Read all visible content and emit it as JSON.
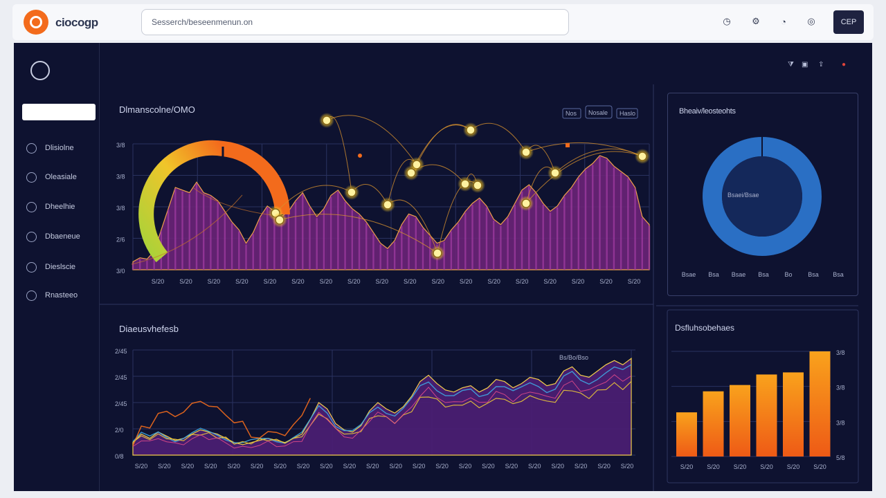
{
  "header": {
    "brand": "ciocogp",
    "search_value": "Sesserch/beseenmenun.on",
    "icons": [
      "clock-icon",
      "gear-icon",
      "bell-icon",
      "globe-icon"
    ],
    "button_label": "CEP"
  },
  "sidebar": {
    "search_value": "",
    "items": [
      {
        "label": "Dlisiolne",
        "icon": "circle-icon"
      },
      {
        "label": "Oleasiale",
        "icon": "circle-icon"
      },
      {
        "label": "Dheelhie",
        "icon": "circle-icon"
      },
      {
        "label": "Dbaeneue",
        "icon": "circle-icon"
      },
      {
        "label": "Dieslscie",
        "icon": "circle-icon"
      },
      {
        "label": "Rnasteeo",
        "icon": "circle-icon"
      }
    ]
  },
  "main": {
    "corner_icons": [
      "filter-icon",
      "lock-icon",
      "share-icon",
      "alert-icon"
    ],
    "top_chart": {
      "title": "Dlmanscolne/OMO",
      "legend": [
        "Nos",
        "Nosale",
        "Haslo"
      ],
      "y_ticks": [
        "3/8",
        "3/8",
        "3/8",
        "2/6",
        "3/0"
      ],
      "x_ticks": [
        "S/20",
        "S/20",
        "S/20",
        "S/20",
        "S/20",
        "S/20",
        "S/20",
        "S/20",
        "S/20",
        "S/20",
        "S/20",
        "S/20",
        "S/20",
        "S/20",
        "S/20",
        "S/20",
        "S/20",
        "S/20"
      ]
    },
    "bottom_chart": {
      "title": "Diaeusvhefesb",
      "annotation": "Bs/Bo/Bso",
      "y_ticks": [
        "2/45",
        "2/45",
        "2/45",
        "2/0",
        "0/8"
      ],
      "x_ticks": [
        "S/20",
        "S/20",
        "S/20",
        "S/20",
        "S/20",
        "S/20",
        "S/20",
        "S/20",
        "S/20",
        "S/20",
        "S/20",
        "S/20",
        "S/20",
        "S/20",
        "S/20",
        "S/20",
        "S/20",
        "S/20",
        "S/20",
        "S/20",
        "S/20",
        "S/20"
      ]
    }
  },
  "right_panels": {
    "donut": {
      "title": "Bheaiv/leosteohts",
      "inner_label": "Bsaei/Bsae",
      "labels": [
        "Bsae",
        "Bsa",
        "Bsae",
        "Bsa",
        "Bo",
        "Bsa",
        "Bsa"
      ],
      "segments": [
        {
          "value": 100,
          "color": "#2a6fc4"
        }
      ]
    },
    "bars": {
      "title": "Dsfluhsobehaes",
      "y_ticks": [
        "3/8",
        "3/8",
        "3/8",
        "5/8"
      ],
      "x_ticks": [
        "S/20",
        "S/20",
        "S/20",
        "S/20",
        "S/20",
        "S/20"
      ]
    }
  },
  "colors": {
    "background": "#0e1230",
    "accent_orange": "#f36b1c",
    "area_purple": "#6a2478",
    "donut_blue": "#2a6fc4"
  },
  "chart_data": [
    {
      "type": "area",
      "title": "Dlmanscolne/OMO",
      "series": [
        {
          "values": [
            6,
            9,
            8,
            14,
            30,
            46,
            62,
            60,
            58,
            66,
            58,
            56,
            52,
            44,
            36,
            30,
            20,
            28,
            40,
            48,
            44,
            40,
            44,
            52,
            58,
            48,
            40,
            46,
            56,
            60,
            52,
            46,
            42,
            36,
            28,
            20,
            16,
            22,
            34,
            42,
            40,
            32,
            26,
            20,
            22,
            30,
            36,
            44,
            50,
            54,
            48,
            38,
            34,
            40,
            50,
            60,
            64,
            58,
            50,
            44,
            48,
            56,
            62,
            70,
            76,
            80,
            86,
            84,
            78,
            74,
            70,
            62,
            40,
            34
          ]
        }
      ],
      "ylim": [
        0,
        100
      ]
    },
    {
      "type": "area",
      "title": "Diaeusvhefesb",
      "series": [
        {
          "values": [
            12,
            20,
            16,
            22,
            18,
            14,
            16,
            20,
            24,
            22,
            20,
            16,
            12,
            10,
            12,
            14,
            16,
            14,
            12,
            16,
            20,
            34,
            50,
            44,
            30,
            24,
            22,
            28,
            42,
            50,
            44,
            40,
            46,
            56,
            70,
            76,
            68,
            62,
            60,
            64,
            66,
            60,
            64,
            72,
            70,
            64,
            68,
            74,
            72,
            66,
            68,
            80,
            84,
            76,
            74,
            80,
            86,
            90,
            86,
            92
          ]
        }
      ],
      "ylim": [
        0,
        100
      ]
    },
    {
      "type": "bar",
      "title": "Dsfluhsobehaes",
      "categories": [
        "S/20",
        "S/20",
        "S/20",
        "S/20",
        "S/20",
        "S/20"
      ],
      "values": [
        42,
        62,
        68,
        78,
        80,
        100
      ],
      "ylim": [
        0,
        100
      ]
    },
    {
      "type": "pie",
      "title": "Bheaiv/leosteohts",
      "values": [
        100
      ]
    }
  ]
}
